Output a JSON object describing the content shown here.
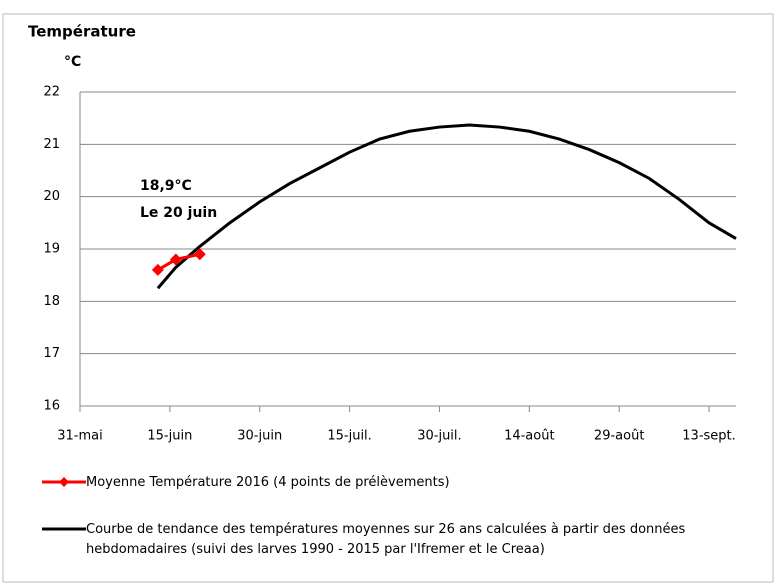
{
  "chart_data": {
    "type": "line",
    "y_label": "Température",
    "y_unit": "°C",
    "annotations": [
      "18,9°C",
      "Le 20 juin"
    ],
    "annotation_color": "#ff0000",
    "xlim": [
      0,
      109.5
    ],
    "xticks": [
      {
        "value": 0,
        "label": "31-mai"
      },
      {
        "value": 15,
        "label": "15-juin"
      },
      {
        "value": 30,
        "label": "30-juin"
      },
      {
        "value": 45,
        "label": "15-juil."
      },
      {
        "value": 60,
        "label": "30-juil."
      },
      {
        "value": 75,
        "label": "14-août"
      },
      {
        "value": 90,
        "label": "29-août"
      },
      {
        "value": 105,
        "label": "13-sept."
      }
    ],
    "ylim": [
      16,
      22
    ],
    "yticks": [
      16,
      17,
      18,
      19,
      20,
      21,
      22
    ],
    "grid": true,
    "series": [
      {
        "name": "Moyenne Température 2016 (4 points de prélèvements)",
        "color": "#ff0000",
        "marker": "diamond",
        "x": [
          13,
          16,
          20
        ],
        "values": [
          18.6,
          18.8,
          18.9
        ]
      },
      {
        "name": "Courbe de tendance des températures moyennes sur 26 ans calculées à partir des données hebdomadaires (suivi des larves 1990 - 2015 par l'Ifremer et le Creaa)",
        "color": "#000000",
        "x": [
          13,
          16,
          20,
          25,
          30,
          35,
          40,
          45,
          50,
          55,
          60,
          65,
          70,
          75,
          80,
          85,
          90,
          95,
          100,
          105,
          109.5
        ],
        "values": [
          18.25,
          18.65,
          19.05,
          19.5,
          19.9,
          20.25,
          20.55,
          20.85,
          21.1,
          21.25,
          21.33,
          21.37,
          21.33,
          21.25,
          21.1,
          20.9,
          20.65,
          20.35,
          19.95,
          19.5,
          19.2
        ]
      }
    ]
  }
}
